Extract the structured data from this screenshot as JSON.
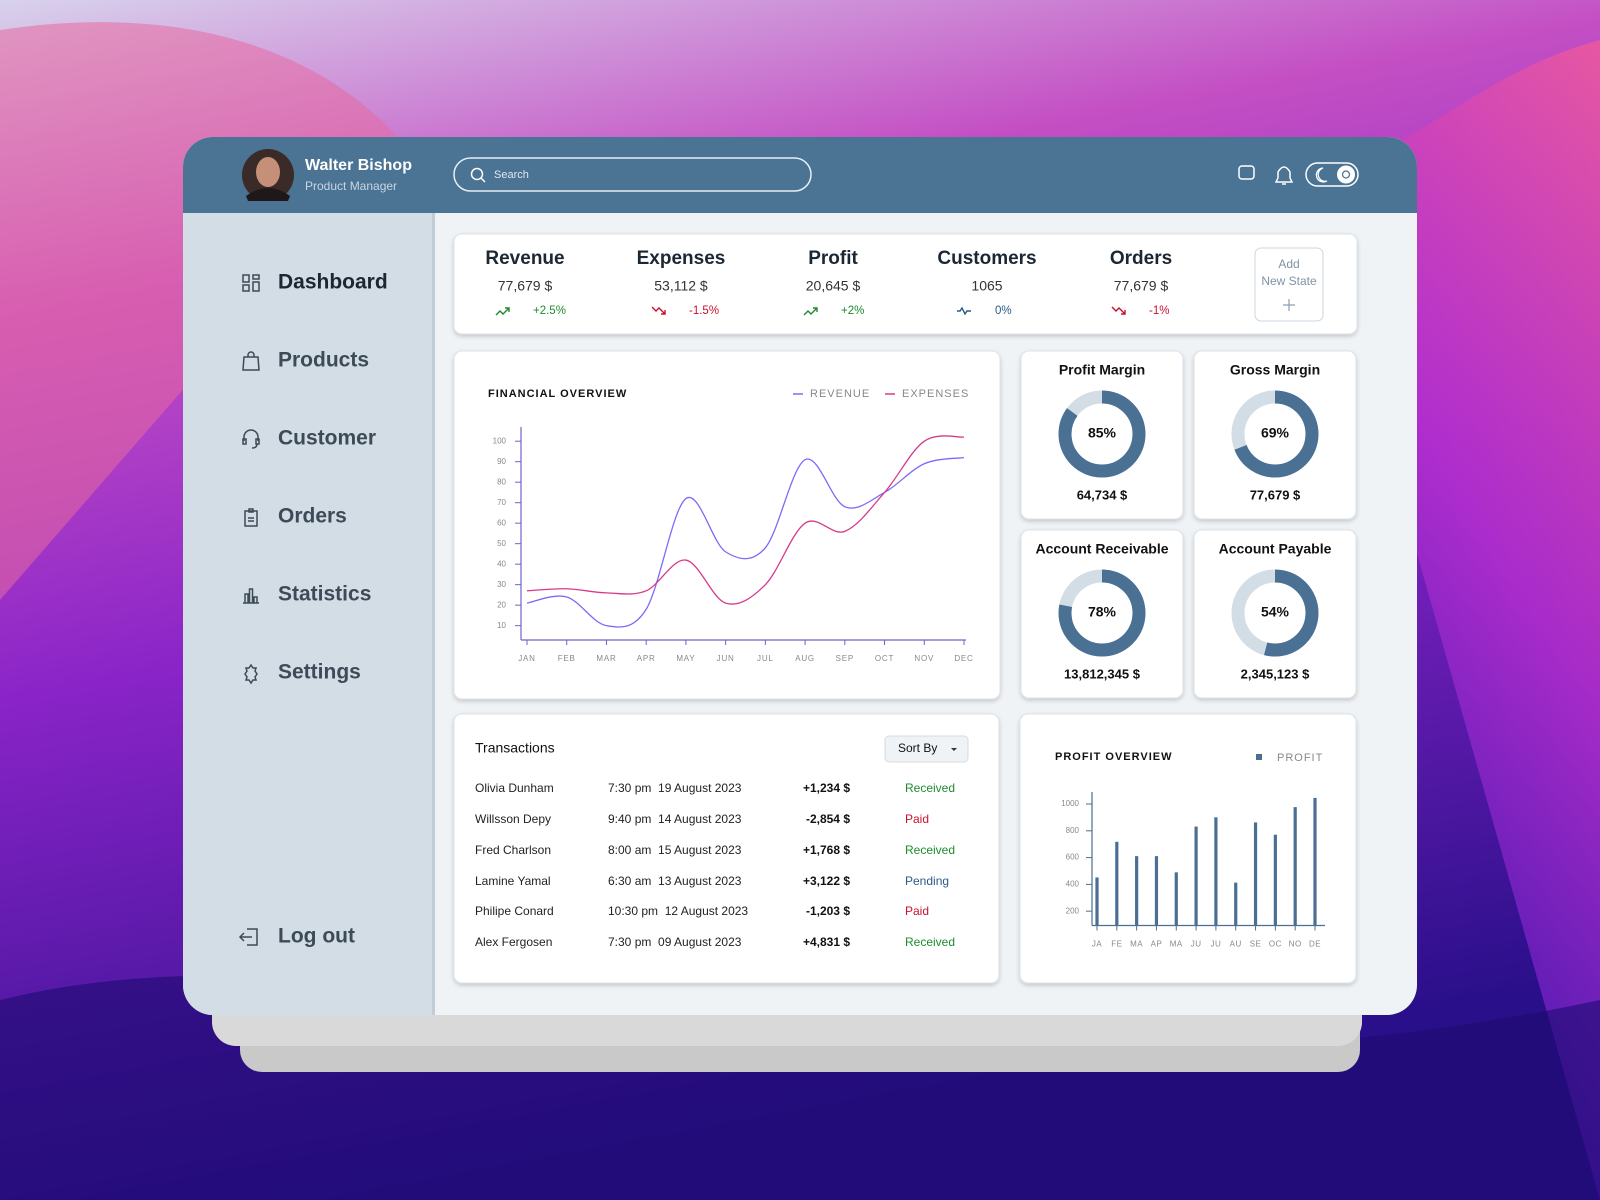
{
  "user": {
    "name": "Walter Bishop",
    "role": "Product Manager"
  },
  "search_placeholder": "Search",
  "nav": [
    "Dashboard",
    "Products",
    "Customer",
    "Orders",
    "Statistics",
    "Settings"
  ],
  "logout": "Log out",
  "stats": [
    {
      "title": "Revenue",
      "value": "77,679 $",
      "change": "+2.5%",
      "color": "#1f8b2e"
    },
    {
      "title": "Expenses",
      "value": "53,112 $",
      "change": "-1.5%",
      "color": "#c8102e"
    },
    {
      "title": "Profit",
      "value": "20,645 $",
      "change": "+2%",
      "color": "#1f8b2e"
    },
    {
      "title": "Customers",
      "value": "1065",
      "change": "0%",
      "color": "#2a5a8a"
    },
    {
      "title": "Orders",
      "value": "77,679 $",
      "change": "-1%",
      "color": "#c8102e"
    }
  ],
  "add_state": [
    "Add",
    "New State"
  ],
  "transactions": {
    "title": "Transactions",
    "sort_button": "Sort By",
    "rows": [
      {
        "name": "Olivia Dunham",
        "time": "7:30 pm  19 August 2023",
        "amount": "+1,234 $",
        "status": "Received",
        "status_color": "#1f8b2e"
      },
      {
        "name": "Willsson Depy",
        "time": "9:40 pm  14 August 2023",
        "amount": "-2,854 $",
        "status": "Paid",
        "status_color": "#c8102e"
      },
      {
        "name": "Fred Charlson",
        "time": "8:00 am  15 August 2023",
        "amount": "+1,768 $",
        "status": "Received",
        "status_color": "#1f8b2e"
      },
      {
        "name": "Lamine Yamal",
        "time": "6:30 am  13 August 2023",
        "amount": "+3,122 $",
        "status": "Pending",
        "status_color": "#2a5a8a"
      },
      {
        "name": "Philipe Conard",
        "time": "10:30 pm  12 August 2023",
        "amount": "-1,203 $",
        "status": "Paid",
        "status_color": "#c8102e"
      },
      {
        "name": "Alex Fergosen",
        "time": "7:30 pm  09 August 2023",
        "amount": "+4,831 $",
        "status": "Received",
        "status_color": "#1f8b2e"
      }
    ]
  },
  "chart_data": [
    {
      "type": "line",
      "title": "FINANCIAL OVERVIEW",
      "categories": [
        "JAN",
        "FEB",
        "MAR",
        "APR",
        "MAY",
        "JUN",
        "JUL",
        "AUG",
        "SEP",
        "OCT",
        "NOV",
        "DEC"
      ],
      "series": [
        {
          "name": "REVENUE",
          "color": "#7b6cf6",
          "values": [
            21,
            24,
            10,
            18,
            72,
            46,
            48,
            91,
            68,
            75,
            89,
            92
          ]
        },
        {
          "name": "EXPENSES",
          "color": "#d63a8a",
          "values": [
            27,
            28,
            26,
            27,
            42,
            21,
            30,
            60,
            56,
            75,
            100,
            102
          ]
        }
      ],
      "ylim": [
        3,
        104
      ],
      "yticks": [
        10,
        20,
        30,
        40,
        50,
        60,
        70,
        80,
        90,
        100
      ],
      "grid": false,
      "legend": "top-right"
    },
    {
      "type": "bar",
      "title": "PROFIT OVERVIEW",
      "categories": [
        "JA",
        "FE",
        "MA",
        "AP",
        "MA",
        "JU",
        "JU",
        "AU",
        "SE",
        "OC",
        "NO",
        "DE"
      ],
      "series": [
        {
          "name": "PROFIT",
          "color": "#4a6f93",
          "values": [
            452,
            718,
            611,
            611,
            490,
            832,
            901,
            413,
            863,
            771,
            977,
            1046
          ]
        }
      ],
      "ylim": [
        93,
        1060
      ],
      "yticks": [
        200,
        400,
        600,
        800,
        1000
      ],
      "grid": false,
      "legend": "top-right"
    },
    {
      "type": "donut",
      "title": "Profit Margin",
      "values": [
        85
      ],
      "value_labels": [
        "85%"
      ],
      "caption": "64,734 $",
      "color": "#4a7094"
    },
    {
      "type": "donut",
      "title": "Gross Margin",
      "values": [
        69
      ],
      "value_labels": [
        "69%"
      ],
      "caption": "77,679 $",
      "color": "#4a7094"
    },
    {
      "type": "donut",
      "title": "Account Receivable",
      "values": [
        78
      ],
      "value_labels": [
        "78%"
      ],
      "caption": "13,812,345 $",
      "color": "#4a7094"
    },
    {
      "type": "donut",
      "title": "Account Payable",
      "values": [
        54
      ],
      "value_labels": [
        "54%"
      ],
      "caption": "2,345,123 $",
      "color": "#4a7094"
    }
  ]
}
